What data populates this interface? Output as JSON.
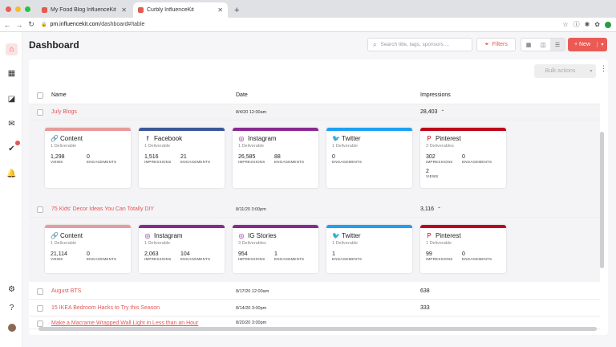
{
  "browser": {
    "tabs": [
      {
        "label": "My Food Blog InfluenceKit",
        "active": false
      },
      {
        "label": "Curbly InfluenceKit",
        "active": true
      }
    ],
    "url_host": "pm.influencekit.com",
    "url_path": "/dashboard#/table"
  },
  "header": {
    "title": "Dashboard",
    "search_placeholder": "Search title, tags, sponsors ...",
    "filters_label": "Filters",
    "new_label": "+ New"
  },
  "table": {
    "bulk_label": "Bulk actions",
    "columns": {
      "name": "Name",
      "date": "Date",
      "impressions": "Impressions"
    },
    "rows": [
      {
        "name": "July Blogs",
        "date": "8/4/20 12:00am",
        "impressions": "28,403",
        "cards": [
          {
            "title": "Content",
            "icon": "link-icon",
            "color": "#e89b9b",
            "sub": "1 Deliverable",
            "stats": [
              {
                "v": "1,298",
                "l": "VIEWS"
              },
              {
                "v": "0",
                "l": "ENGAGEMENTS"
              }
            ]
          },
          {
            "title": "Facebook",
            "icon": "facebook-icon",
            "color": "#3b5998",
            "sub": "1 Deliverable",
            "stats": [
              {
                "v": "1,516",
                "l": "IMPRESSIONS"
              },
              {
                "v": "21",
                "l": "ENGAGEMENTS"
              }
            ]
          },
          {
            "title": "Instagram",
            "icon": "instagram-icon",
            "color": "#8a2a91",
            "sub": "1 Deliverable",
            "stats": [
              {
                "v": "26,585",
                "l": "IMPRESSIONS"
              },
              {
                "v": "88",
                "l": "ENGAGEMENTS"
              }
            ]
          },
          {
            "title": "Twitter",
            "icon": "twitter-icon",
            "color": "#1da1f2",
            "sub": "1 Deliverable",
            "stats": [
              {
                "v": "0",
                "l": "ENGAGEMENTS"
              }
            ]
          },
          {
            "title": "Pinterest",
            "icon": "pinterest-icon",
            "color": "#bd081c",
            "sub": "3 Deliverables",
            "stats": [
              {
                "v": "302",
                "l": "IMPRESSIONS"
              },
              {
                "v": "0",
                "l": "ENGAGEMENTS"
              },
              {
                "v": "2",
                "l": "VIEWS"
              }
            ]
          }
        ]
      },
      {
        "name": "75 Kids' Decor Ideas You Can Totally DIY",
        "date": "8/11/20 3:00pm",
        "impressions": "3,116",
        "cards": [
          {
            "title": "Content",
            "icon": "link-icon",
            "color": "#e89b9b",
            "sub": "1 Deliverable",
            "stats": [
              {
                "v": "21,114",
                "l": "VIEWS"
              },
              {
                "v": "0",
                "l": "ENGAGEMENTS"
              }
            ]
          },
          {
            "title": "Instagram",
            "icon": "instagram-icon",
            "color": "#8a2a91",
            "sub": "1 Deliverable",
            "stats": [
              {
                "v": "2,063",
                "l": "IMPRESSIONS"
              },
              {
                "v": "104",
                "l": "ENGAGEMENTS"
              }
            ]
          },
          {
            "title": "IG Stories",
            "icon": "instagram-icon",
            "color": "#8a2a91",
            "sub": "3 Deliverables",
            "stats": [
              {
                "v": "954",
                "l": "IMPRESSIONS"
              },
              {
                "v": "1",
                "l": "ENGAGEMENTS"
              }
            ]
          },
          {
            "title": "Twitter",
            "icon": "twitter-icon",
            "color": "#1da1f2",
            "sub": "1 Deliverable",
            "stats": [
              {
                "v": "1",
                "l": "ENGAGEMENTS"
              }
            ]
          },
          {
            "title": "Pinterest",
            "icon": "pinterest-icon",
            "color": "#bd081c",
            "sub": "1 Deliverable",
            "stats": [
              {
                "v": "99",
                "l": "IMPRESSIONS"
              },
              {
                "v": "0",
                "l": "ENGAGEMENTS"
              }
            ]
          }
        ]
      },
      {
        "name": "August BTS",
        "date": "8/17/20 12:00am",
        "impressions": "638"
      },
      {
        "name": "15 IKEA Bedroom Hacks to Try this Season",
        "date": "8/14/20 3:00pm",
        "impressions": "333"
      },
      {
        "name": "Make a Macrame Wrapped Wall Light in Less than an Hour",
        "date": "8/20/20 3:00pm",
        "impressions": ""
      }
    ]
  },
  "colors": {
    "accent": "#e45555",
    "new_button": "#ea5b55"
  }
}
